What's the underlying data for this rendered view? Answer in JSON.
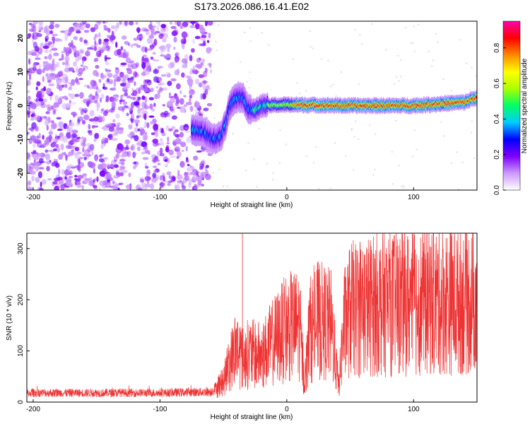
{
  "title": "S173.2026.086.16.41.E02",
  "chart_data": [
    {
      "type": "heatmap",
      "name": "spectrogram",
      "xlabel": "Height of straight line (km)",
      "ylabel": "Frequency (Hz)",
      "xlim": [
        -205,
        150
      ],
      "ylim": [
        -25,
        25
      ],
      "xticks": [
        -200,
        -100,
        0,
        100
      ],
      "yticks": [
        20,
        10,
        0,
        -10,
        -20
      ],
      "noise_region_end_km": -60,
      "ridge": [
        {
          "x": -75,
          "y": -7
        },
        {
          "x": -65,
          "y": -8
        },
        {
          "x": -58,
          "y": -10
        },
        {
          "x": -52,
          "y": -9
        },
        {
          "x": -48,
          "y": -5
        },
        {
          "x": -45,
          "y": 0
        },
        {
          "x": -40,
          "y": 2.5
        },
        {
          "x": -35,
          "y": 2.5
        },
        {
          "x": -30,
          "y": -1
        },
        {
          "x": -25,
          "y": -1.5
        },
        {
          "x": -20,
          "y": 0
        },
        {
          "x": 0,
          "y": 0.3
        },
        {
          "x": 50,
          "y": 0
        },
        {
          "x": 100,
          "y": 0
        },
        {
          "x": 140,
          "y": 1
        },
        {
          "x": 150,
          "y": 2.5
        }
      ],
      "colorbar": {
        "label": "Normalized spectral amplitude",
        "ticks": [
          0.0,
          0.2,
          0.4,
          0.6,
          0.8
        ],
        "tick_labels": [
          "0.0",
          "0.2",
          "0.4",
          "0.6",
          "0.8"
        ],
        "range": [
          0,
          0.95
        ],
        "colors": [
          "#ffffff",
          "#cc99ff",
          "#7f00ff",
          "#0000ff",
          "#00ccff",
          "#00ff66",
          "#aaff00",
          "#ffff00",
          "#ff8800",
          "#ff0000",
          "#ff00aa"
        ]
      }
    },
    {
      "type": "line",
      "name": "snr",
      "xlabel": "Height of straight line (km)",
      "ylabel": "SNR (10 * v/v)",
      "xlim": [
        -205,
        150
      ],
      "ylim": [
        0,
        330
      ],
      "xticks": [
        -200,
        -100,
        0,
        100
      ],
      "yticks": [
        0,
        100,
        200,
        300
      ],
      "color": "#ee3333",
      "envelope": [
        {
          "x": -205,
          "y": 18
        },
        {
          "x": -150,
          "y": 18
        },
        {
          "x": -100,
          "y": 18
        },
        {
          "x": -60,
          "y": 20
        },
        {
          "x": -50,
          "y": 40
        },
        {
          "x": -45,
          "y": 75
        },
        {
          "x": -40,
          "y": 110
        },
        {
          "x": -35,
          "y": 85
        },
        {
          "x": -30,
          "y": 95
        },
        {
          "x": -20,
          "y": 90
        },
        {
          "x": -10,
          "y": 120
        },
        {
          "x": 0,
          "y": 145
        },
        {
          "x": 10,
          "y": 150
        },
        {
          "x": 14,
          "y": 35
        },
        {
          "x": 18,
          "y": 140
        },
        {
          "x": 25,
          "y": 160
        },
        {
          "x": 35,
          "y": 150
        },
        {
          "x": 41,
          "y": 30
        },
        {
          "x": 45,
          "y": 150
        },
        {
          "x": 50,
          "y": 180
        },
        {
          "x": 70,
          "y": 190
        },
        {
          "x": 100,
          "y": 195
        },
        {
          "x": 130,
          "y": 200
        },
        {
          "x": 150,
          "y": 200
        }
      ],
      "peaks": [
        {
          "x": -35,
          "y": 330
        },
        {
          "x": 60,
          "y": 295
        },
        {
          "x": 68,
          "y": 290
        }
      ]
    }
  ]
}
